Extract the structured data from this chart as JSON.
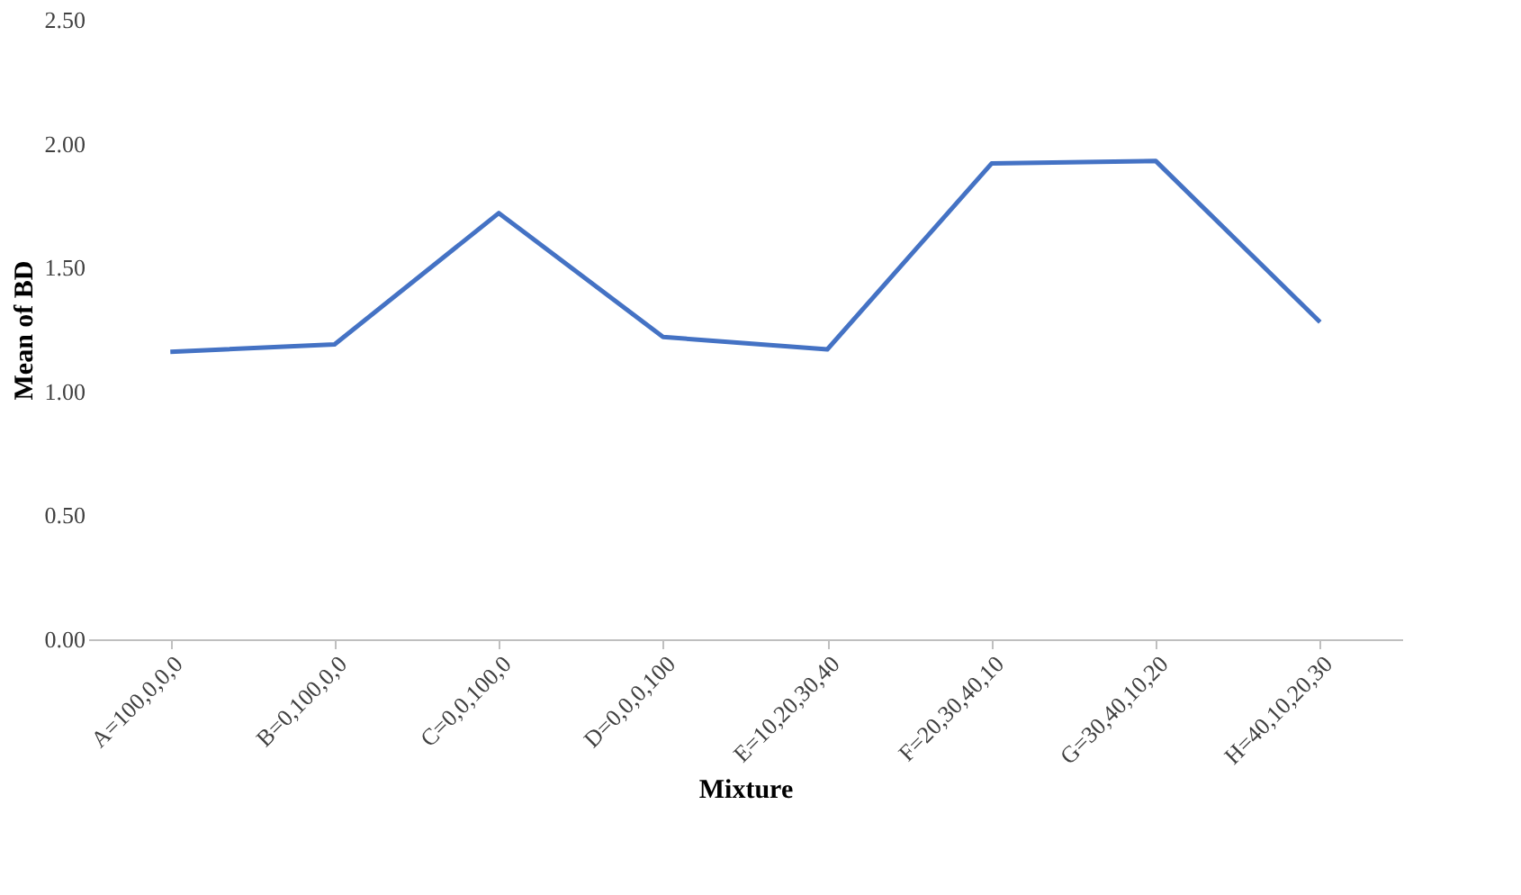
{
  "chart_data": {
    "type": "line",
    "xlabel": "Mixture",
    "ylabel": "Mean of BD",
    "categories": [
      "A=100,0,0,0",
      "B=0,100,0,0",
      "C=0,0,100,0",
      "D=0,0,0,100",
      "E=10,20,30,40",
      "F=20,30,40,10",
      "G=30,40,10,20",
      "H=40,10,20,30"
    ],
    "series": [
      {
        "color": "#4472c4",
        "values": [
          1.16,
          1.19,
          1.72,
          1.22,
          1.17,
          1.92,
          1.93,
          1.28
        ]
      }
    ],
    "ylim": [
      0,
      2.5
    ],
    "yticks": [
      {
        "value": 0,
        "label": "0.00"
      },
      {
        "value": 0.5,
        "label": "0.50"
      },
      {
        "value": 1.0,
        "label": "1.00"
      },
      {
        "value": 1.5,
        "label": "1.50"
      },
      {
        "value": 2.0,
        "label": "2.00"
      },
      {
        "value": 2.5,
        "label": "2.50"
      }
    ],
    "grid": false,
    "legend": false,
    "marker": "none",
    "line_style": "solid"
  }
}
